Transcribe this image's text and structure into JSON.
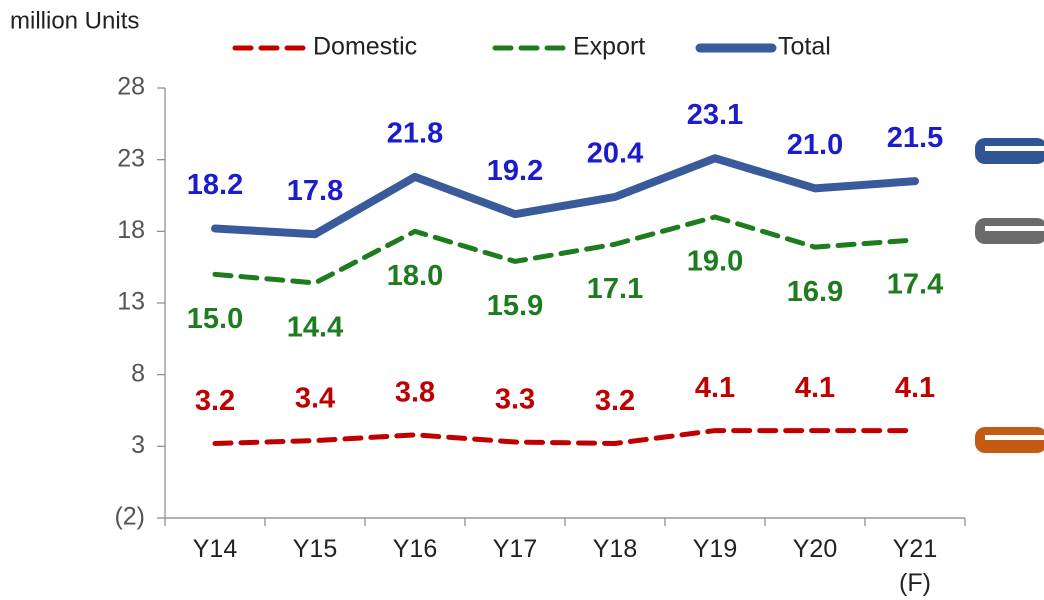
{
  "chart_data": {
    "type": "line",
    "y_label": "million Units",
    "categories": [
      "Y14",
      "Y15",
      "Y16",
      "Y17",
      "Y18",
      "Y19",
      "Y20",
      "Y21\n(F)"
    ],
    "ylim": [
      -2,
      28
    ],
    "yticks": [
      {
        "value": -2,
        "label": "(2)"
      },
      3,
      8,
      13,
      18,
      23,
      28
    ],
    "series": [
      {
        "name": "Domestic",
        "color": "#c00000",
        "label_color": "#c00000",
        "dashed": true,
        "values": [
          3.2,
          3.4,
          3.8,
          3.3,
          3.2,
          4.1,
          4.1,
          4.1
        ],
        "value_labels": [
          "3.2",
          "3.4",
          "3.8",
          "3.3",
          "3.2",
          "4.1",
          "4.1",
          "4.1"
        ]
      },
      {
        "name": "Export",
        "color": "#1e7b1e",
        "label_color": "#1e7b1e",
        "dashed": true,
        "values": [
          15.0,
          14.4,
          18.0,
          15.9,
          17.1,
          19.0,
          16.9,
          17.4
        ],
        "value_labels": [
          "15.0",
          "14.4",
          "18.0",
          "15.9",
          "17.1",
          "19.0",
          "16.9",
          "17.4"
        ]
      },
      {
        "name": "Total",
        "color": "#3a5b9b",
        "label_color": "#1c1ccc",
        "dashed": false,
        "values": [
          18.2,
          17.8,
          21.8,
          19.2,
          20.4,
          23.1,
          21.0,
          21.5
        ],
        "value_labels": [
          "18.2",
          "17.8",
          "21.8",
          "19.2",
          "20.4",
          "23.1",
          "21.0",
          "21.5"
        ]
      }
    ]
  }
}
